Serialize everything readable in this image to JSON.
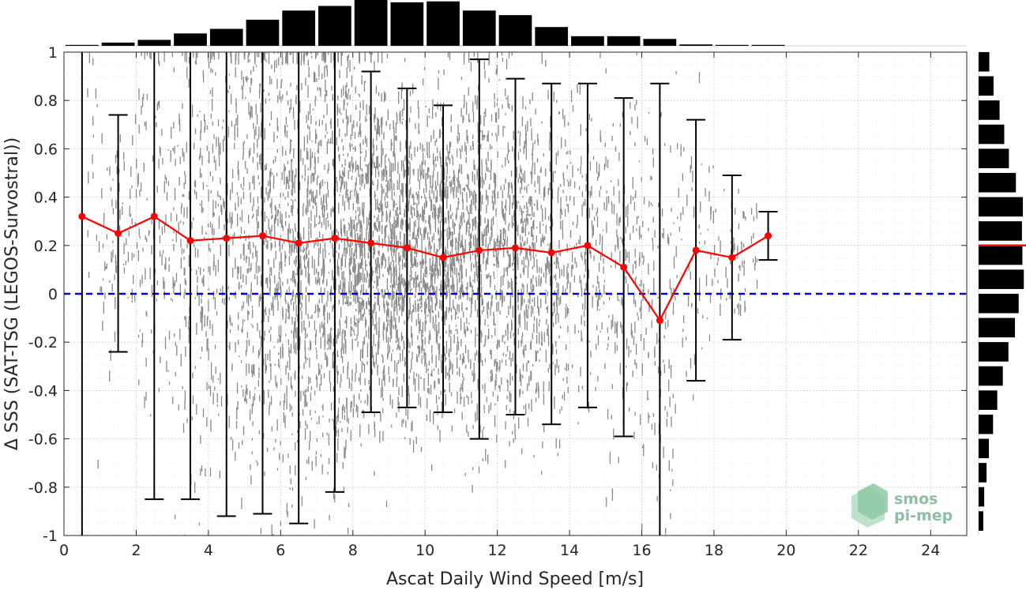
{
  "chart_data": {
    "type": "scatter",
    "xlabel": "Ascat Daily Wind Speed [m/s]",
    "ylabel": "Δ SSS (SAT-TSG (LEGOS-Survostral))",
    "xlim": [
      0,
      25
    ],
    "ylim": [
      -1,
      1
    ],
    "x_ticks": [
      0,
      2,
      4,
      6,
      8,
      10,
      12,
      14,
      16,
      18,
      20,
      22,
      24
    ],
    "y_ticks": [
      -1,
      -0.8,
      -0.6,
      -0.4,
      -0.2,
      0,
      0.2,
      0.4,
      0.6,
      0.8,
      1
    ],
    "grid": true,
    "reference_line": {
      "y": 0,
      "color": "#0000cc",
      "style": "dashed"
    },
    "mean_series": {
      "color": "#ff0000",
      "x": [
        0.5,
        1.5,
        2.5,
        3.5,
        4.5,
        5.5,
        6.5,
        7.5,
        8.5,
        9.5,
        10.5,
        11.5,
        12.5,
        13.5,
        14.5,
        15.5,
        16.5,
        17.5,
        18.5,
        19.5
      ],
      "y": [
        0.32,
        0.25,
        0.32,
        0.22,
        0.23,
        0.24,
        0.21,
        0.23,
        0.21,
        0.19,
        0.15,
        0.18,
        0.19,
        0.17,
        0.2,
        0.11,
        -0.11,
        0.18,
        0.15,
        0.24
      ]
    },
    "error_bars": {
      "color": "#000000",
      "upper": [
        1.0,
        0.74,
        1.0,
        1.0,
        1.0,
        1.0,
        1.0,
        1.0,
        0.92,
        0.85,
        0.78,
        0.97,
        0.89,
        0.87,
        0.87,
        0.81,
        0.87,
        0.72,
        0.49,
        0.34
      ],
      "lower": [
        -1.0,
        -0.24,
        -0.85,
        -0.85,
        -0.92,
        -0.91,
        -0.95,
        -0.82,
        -0.49,
        -0.47,
        -0.49,
        -0.6,
        -0.5,
        -0.54,
        -0.47,
        -0.59,
        -1.0,
        -0.36,
        -0.19,
        0.14
      ]
    },
    "scatter_cloud": {
      "color": "#8a8a8a",
      "x_range": [
        0.6,
        19.2
      ],
      "y_range": [
        -1,
        1
      ]
    },
    "top_histogram": {
      "color": "#000000",
      "bin_centers": [
        0.5,
        1.5,
        2.5,
        3.5,
        4.5,
        5.5,
        6.5,
        7.5,
        8.5,
        9.5,
        10.5,
        11.5,
        12.5,
        13.5,
        14.5,
        15.5,
        16.5,
        17.5,
        18.5,
        19.5
      ],
      "counts": [
        0.02,
        0.07,
        0.13,
        0.27,
        0.37,
        0.57,
        0.77,
        0.87,
        1.0,
        0.95,
        0.97,
        0.77,
        0.67,
        0.41,
        0.21,
        0.21,
        0.15,
        0.03,
        0.02,
        0.02
      ]
    },
    "right_histogram": {
      "color": "#000000",
      "marker_color": "#ff0000",
      "marker_y": 0.2,
      "bin_centers": [
        0.96,
        0.86,
        0.76,
        0.66,
        0.56,
        0.46,
        0.36,
        0.26,
        0.16,
        0.06,
        -0.04,
        -0.14,
        -0.24,
        -0.34,
        -0.44,
        -0.54,
        -0.64,
        -0.74,
        -0.84,
        -0.94
      ],
      "counts": [
        0.23,
        0.32,
        0.45,
        0.55,
        0.65,
        0.8,
        0.95,
        0.93,
        0.94,
        0.97,
        0.86,
        0.78,
        0.64,
        0.52,
        0.4,
        0.31,
        0.22,
        0.17,
        0.12,
        0.1
      ]
    }
  },
  "logo": {
    "line1": "smos",
    "line2": "pi-mep"
  }
}
